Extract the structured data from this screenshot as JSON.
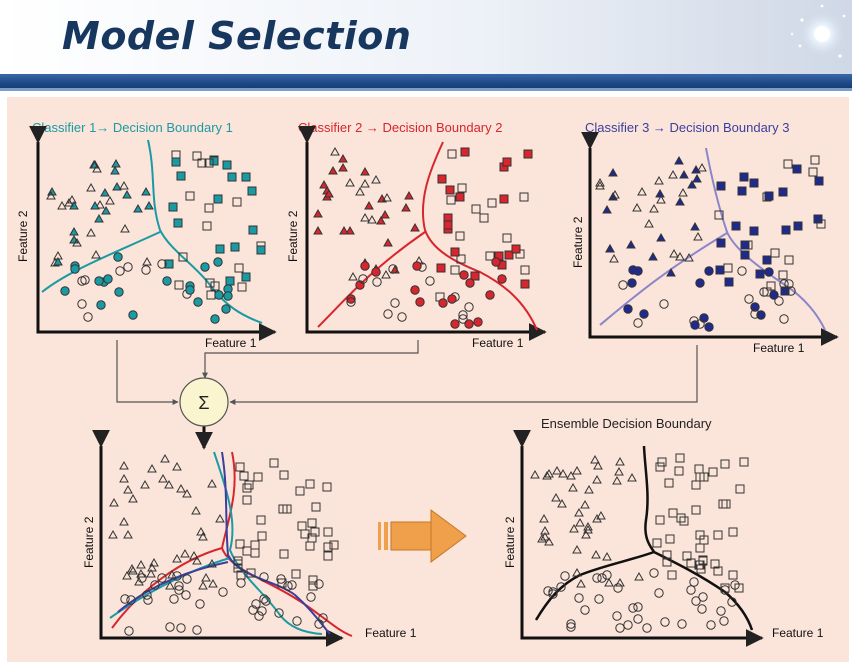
{
  "slide": {
    "title": "Model Selection"
  },
  "figure": {
    "classifier1_label": "Classifier 1→ Decision Boundary 1",
    "classifier2_label": "Classifier 2 → Decision Boundary 2",
    "classifier3_label": "Classifier 3 → Decision Boundary 3",
    "ensemble_label": "Ensemble Decision Boundary",
    "sum_symbol": "Σ",
    "feature1": "Feature 1",
    "feature2": "Feature 2",
    "colors": {
      "c1": "#1a9ba3",
      "c2": "#d8262e",
      "c3": "#1f2a8c",
      "arrow": "#f0a04b",
      "panel": "#fbe4d9"
    }
  }
}
